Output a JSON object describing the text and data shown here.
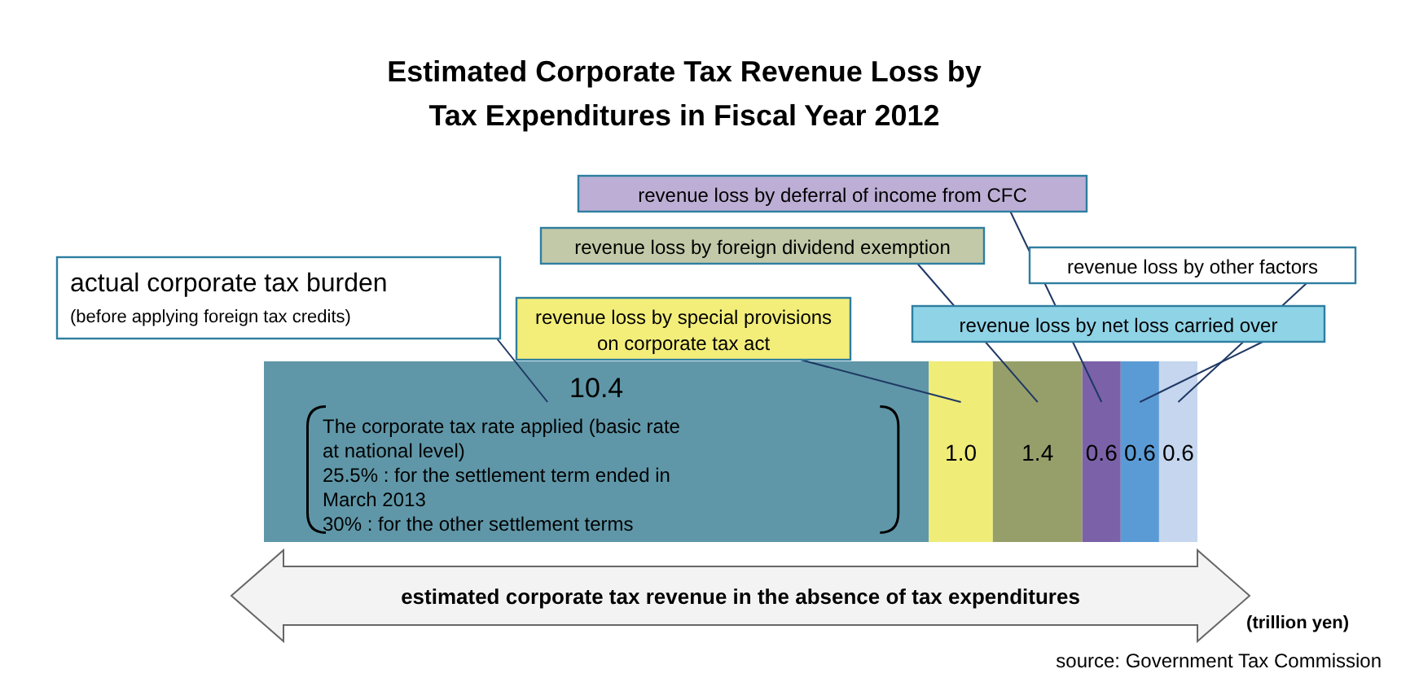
{
  "chart_data": {
    "type": "bar",
    "orientation": "horizontal",
    "stacked": true,
    "title": "Estimated Corporate Tax Revenue Loss by\nTax Expenditures in Fiscal Year 2012",
    "xlabel": "estimated corporate tax revenue in the absence of tax expenditures",
    "categories": [
      null
    ],
    "series": [
      {
        "name": "actual corporate tax burden",
        "color": "#5f97a8",
        "values": [
          10.4
        ],
        "value_labels": [
          "10.4"
        ]
      },
      {
        "name": "revenue loss by special provisions on corporate tax act",
        "color": "#f0ec78",
        "values": [
          1.0
        ],
        "value_labels": [
          "1.0"
        ]
      },
      {
        "name": "revenue loss by foreign dividend exemption",
        "color": "#969f6a",
        "values": [
          1.4
        ],
        "value_labels": [
          "1.4"
        ]
      },
      {
        "name": "revenue loss by deferral of income from CFC",
        "color": "#7b62a8",
        "values": [
          0.6
        ],
        "value_labels": [
          "0.6"
        ]
      },
      {
        "name": "revenue loss by net loss carried over",
        "color": "#5b9bd5",
        "values": [
          0.6
        ],
        "value_labels": [
          "0.6"
        ]
      },
      {
        "name": "revenue loss by other factors",
        "color": "#c5d6ee",
        "values": [
          0.6
        ],
        "value_labels": [
          "0.6"
        ]
      }
    ],
    "annotations": [
      "(before applying foreign tax credits)",
      "The corporate tax rate applied (basic rate at national level)",
      "25.5% : for the settlement term ended in March 2013",
      "30% : for the other settlement terms",
      "(trillion yen)",
      "source: Government Tax Commission"
    ]
  }
}
